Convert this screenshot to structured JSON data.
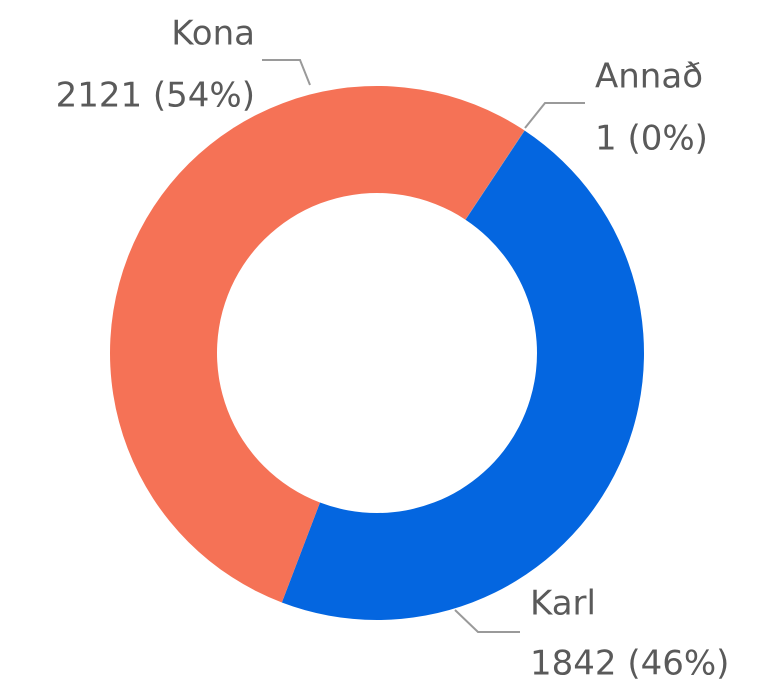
{
  "chart_data": {
    "type": "donut",
    "categories": [
      "Annað",
      "Karl",
      "Kona"
    ],
    "values": [
      1,
      1842,
      2121
    ],
    "value_labels": [
      "1 (0%)",
      "1842 (46%)",
      "2121 (54%)"
    ],
    "colors": [
      "#8a8a8a",
      "#0466e0",
      "#f57256"
    ]
  }
}
